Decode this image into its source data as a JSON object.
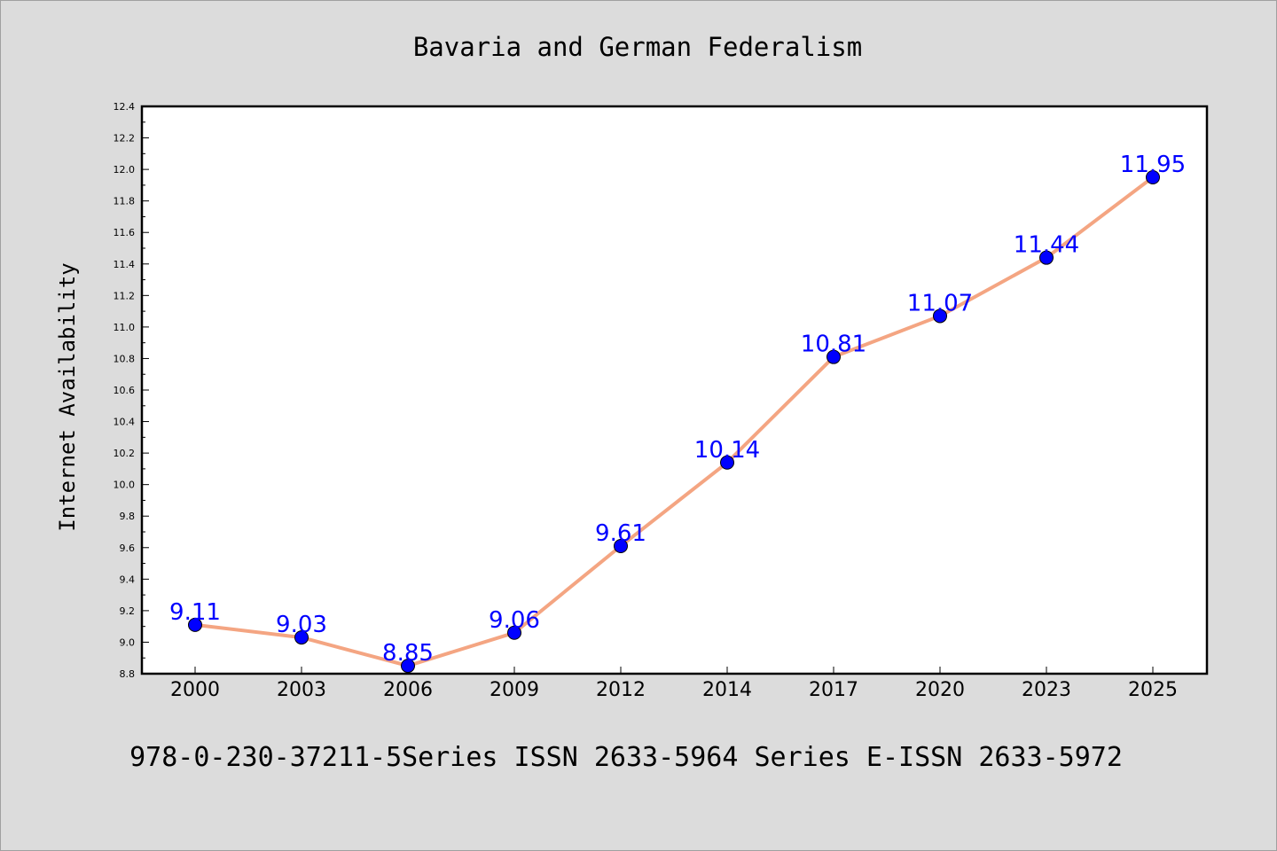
{
  "chart_data": {
    "type": "line",
    "title": "Bavaria and German Federalism",
    "xlabel": "",
    "ylabel": "Internet Availability",
    "categories": [
      "2000",
      "2003",
      "2006",
      "2009",
      "2012",
      "2014",
      "2017",
      "2020",
      "2023",
      "2025"
    ],
    "series": [
      {
        "values": [
          9.11,
          9.03,
          8.85,
          9.06,
          9.61,
          10.14,
          10.81,
          11.07,
          11.44,
          11.95
        ],
        "data_labels": [
          "9.11",
          "9.03",
          "8.85",
          "9.06",
          "9.61",
          "10.14",
          "10.81",
          "11.07",
          "11.44",
          "11.95"
        ]
      }
    ],
    "ylim": [
      8.8,
      12.4
    ],
    "yticks": [
      "8.8",
      "9.0",
      "9.2",
      "9.4",
      "9.6",
      "9.8",
      "10.0",
      "10.2",
      "10.4",
      "10.6",
      "10.8",
      "11.0",
      "11.2",
      "11.4",
      "11.6",
      "11.8",
      "12.0",
      "12.2",
      "12.4"
    ],
    "grid": false,
    "legend": "none",
    "colors": {
      "line": "#f4a582",
      "marker": "#0000ff",
      "marker_edge": "#000000",
      "data_label": "#0000ff",
      "background": "#dcdcdc",
      "plot_background": "#ffffff"
    }
  },
  "footer": {
    "text": "978-0-230-37211-5Series ISSN 2633-5964 Series E-ISSN 2633-5972"
  }
}
